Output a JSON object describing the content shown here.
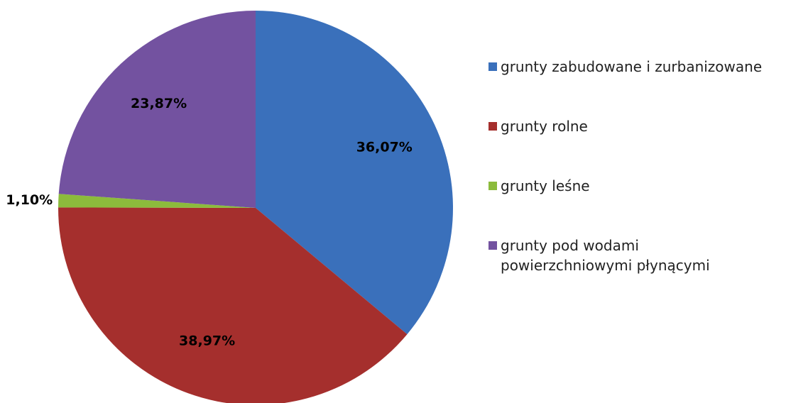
{
  "chart_data": {
    "type": "pie",
    "categories": [
      "grunty zabudowane i zurbanizowane",
      "grunty rolne",
      "grunty leśne",
      "grunty pod wodami powierzchniowymi płynącymi"
    ],
    "values": [
      36.07,
      38.97,
      1.1,
      23.87
    ],
    "value_labels": [
      "36,07%",
      "38,97%",
      "1,10%",
      "23,87%"
    ],
    "colors": [
      "#3a70bb",
      "#a52f2d",
      "#8cbb3c",
      "#7352a0"
    ],
    "legend": "right"
  }
}
